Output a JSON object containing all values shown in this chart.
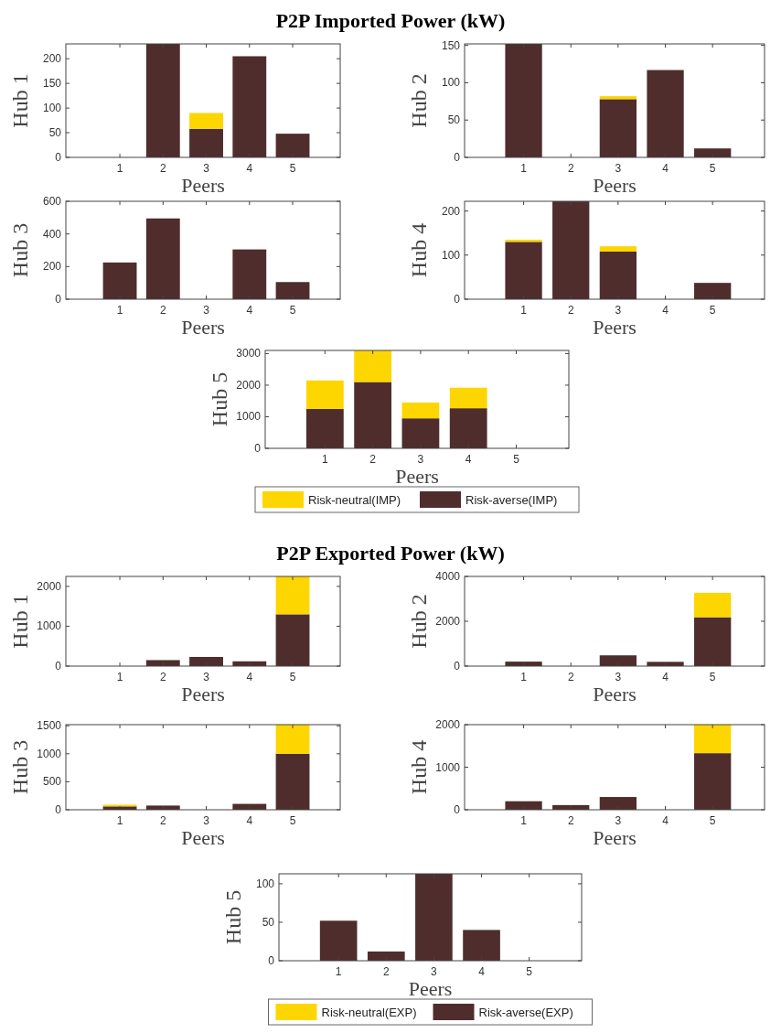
{
  "chart_data": [
    {
      "type": "bar",
      "title": "P2P Imported Power (kW)",
      "ylabel": "Hub 1",
      "xlabel": "Peers",
      "categories": [
        "1",
        "2",
        "3",
        "4",
        "5"
      ],
      "stacked": true,
      "ylim": [
        0,
        230
      ],
      "yticks": [
        0,
        50,
        100,
        150,
        200
      ],
      "legend": false,
      "series": [
        {
          "color": "#4f2d2d",
          "values": [
            0,
            230,
            58,
            205,
            48
          ]
        },
        {
          "color": "#fdd600",
          "values": [
            0,
            0,
            32,
            0,
            0
          ]
        }
      ]
    },
    {
      "type": "bar",
      "ylabel": "Hub 2",
      "xlabel": "Peers",
      "categories": [
        "1",
        "2",
        "3",
        "4",
        "5"
      ],
      "stacked": true,
      "ylim": [
        0,
        152
      ],
      "yticks": [
        0,
        50,
        100,
        150
      ],
      "legend": false,
      "series": [
        {
          "color": "#4f2d2d",
          "values": [
            152,
            0,
            78,
            117,
            12
          ]
        },
        {
          "color": "#fdd600",
          "values": [
            0,
            0,
            4,
            0,
            0
          ]
        }
      ]
    },
    {
      "type": "bar",
      "ylabel": "Hub 3",
      "xlabel": "Peers",
      "categories": [
        "1",
        "2",
        "3",
        "4",
        "5"
      ],
      "stacked": true,
      "ylim": [
        0,
        600
      ],
      "yticks": [
        0,
        200,
        400,
        600
      ],
      "legend": false,
      "series": [
        {
          "color": "#4f2d2d",
          "values": [
            225,
            495,
            0,
            305,
            105
          ]
        },
        {
          "color": "#fdd600",
          "values": [
            0,
            0,
            0,
            0,
            0
          ]
        }
      ]
    },
    {
      "type": "bar",
      "ylabel": "Hub 4",
      "xlabel": "Peers",
      "categories": [
        "1",
        "2",
        "3",
        "4",
        "5"
      ],
      "stacked": true,
      "ylim": [
        0,
        222
      ],
      "yticks": [
        0,
        100,
        200
      ],
      "legend": false,
      "series": [
        {
          "color": "#4f2d2d",
          "values": [
            130,
            222,
            108,
            0,
            37
          ]
        },
        {
          "color": "#fdd600",
          "values": [
            5,
            0,
            12,
            0,
            0
          ]
        }
      ]
    },
    {
      "type": "bar",
      "ylabel": "Hub 5",
      "xlabel": "Peers",
      "categories": [
        "1",
        "2",
        "3",
        "4",
        "5"
      ],
      "stacked": true,
      "ylim": [
        0,
        3100
      ],
      "yticks": [
        0,
        1000,
        2000,
        3000
      ],
      "legend": "bottom",
      "series": [
        {
          "name": "Risk-averse(IMP)",
          "color": "#4f2d2d",
          "values": [
            1250,
            2100,
            950,
            1270,
            0
          ]
        },
        {
          "name": "Risk-neutral(IMP)",
          "color": "#fdd600",
          "values": [
            900,
            1000,
            500,
            650,
            0
          ]
        }
      ]
    },
    {
      "type": "bar",
      "title": "P2P Exported Power (kW)",
      "ylabel": "Hub 1",
      "xlabel": "Peers",
      "categories": [
        "1",
        "2",
        "3",
        "4",
        "5"
      ],
      "stacked": true,
      "ylim": [
        0,
        2250
      ],
      "yticks": [
        0,
        1000,
        2000
      ],
      "legend": false,
      "series": [
        {
          "color": "#4f2d2d",
          "values": [
            0,
            150,
            230,
            120,
            1300
          ]
        },
        {
          "color": "#fdd600",
          "values": [
            0,
            0,
            0,
            0,
            950
          ]
        }
      ]
    },
    {
      "type": "bar",
      "ylabel": "Hub 2",
      "xlabel": "Peers",
      "categories": [
        "1",
        "2",
        "3",
        "4",
        "5"
      ],
      "stacked": true,
      "ylim": [
        0,
        4000
      ],
      "yticks": [
        0,
        2000,
        4000
      ],
      "legend": false,
      "series": [
        {
          "color": "#4f2d2d",
          "values": [
            200,
            0,
            480,
            190,
            2180
          ]
        },
        {
          "color": "#fdd600",
          "values": [
            0,
            0,
            0,
            0,
            1090
          ]
        }
      ]
    },
    {
      "type": "bar",
      "ylabel": "Hub 3",
      "xlabel": "Peers",
      "categories": [
        "1",
        "2",
        "3",
        "4",
        "5"
      ],
      "stacked": true,
      "ylim": [
        0,
        1520
      ],
      "yticks": [
        0,
        500,
        1000,
        1500
      ],
      "legend": false,
      "series": [
        {
          "color": "#4f2d2d",
          "values": [
            60,
            75,
            0,
            105,
            1000
          ]
        },
        {
          "color": "#fdd600",
          "values": [
            30,
            0,
            0,
            0,
            520
          ]
        }
      ]
    },
    {
      "type": "bar",
      "ylabel": "Hub 4",
      "xlabel": "Peers",
      "categories": [
        "1",
        "2",
        "3",
        "4",
        "5"
      ],
      "stacked": true,
      "ylim": [
        0,
        2000
      ],
      "yticks": [
        0,
        1000,
        2000
      ],
      "legend": false,
      "series": [
        {
          "color": "#4f2d2d",
          "values": [
            200,
            110,
            300,
            0,
            1330
          ]
        },
        {
          "color": "#fdd600",
          "values": [
            0,
            0,
            0,
            0,
            670
          ]
        }
      ]
    },
    {
      "type": "bar",
      "ylabel": "Hub 5",
      "xlabel": "Peers",
      "categories": [
        "1",
        "2",
        "3",
        "4",
        "5"
      ],
      "stacked": true,
      "ylim": [
        0,
        113
      ],
      "yticks": [
        0,
        50,
        100
      ],
      "legend": "bottom",
      "series": [
        {
          "name": "Risk-averse(EXP)",
          "color": "#4f2d2d",
          "values": [
            52,
            12,
            113,
            40,
            0
          ]
        },
        {
          "name": "Risk-neutral(EXP)",
          "color": "#fdd600",
          "values": [
            0,
            0,
            0,
            0,
            0
          ]
        }
      ]
    }
  ]
}
